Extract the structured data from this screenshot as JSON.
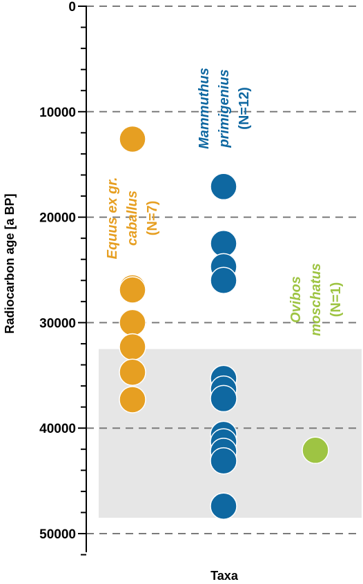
{
  "chart_data": {
    "type": "scatter",
    "title": "",
    "xlabel": "Taxa",
    "ylabel": "Radiocarbon age [a BP]",
    "ylim": [
      0,
      50000
    ],
    "y_inverted": true,
    "yticks": [
      0,
      10000,
      20000,
      30000,
      40000,
      50000
    ],
    "ytick_labels": [
      "0",
      "10000",
      "20000",
      "30000",
      "40000",
      "50000"
    ],
    "grid": "horizontal dashed at major ticks",
    "highlight_band": {
      "y_from": 32500,
      "y_to": 48500,
      "color": "#e6e6e6"
    },
    "series": [
      {
        "name_lines": [
          "Equus ex gr.",
          "caballus"
        ],
        "count_label": "(N=7)",
        "color": "#e69f22",
        "category_position": 1,
        "values": [
          12600,
          26700,
          26900,
          30000,
          32300,
          34700,
          37300
        ]
      },
      {
        "name_lines": [
          "Mammuthus",
          "primigenius"
        ],
        "count_label": "(N=12)",
        "color": "#0f68a1",
        "category_position": 2,
        "values": [
          17100,
          22500,
          24700,
          26000,
          35300,
          36300,
          37200,
          40600,
          41300,
          42200,
          43100,
          47400
        ]
      },
      {
        "name_lines": [
          "Ovibos",
          "moschatus"
        ],
        "count_label": "(N=1)",
        "color": "#9ec443",
        "category_position": 3,
        "values": [
          42100
        ]
      }
    ]
  }
}
